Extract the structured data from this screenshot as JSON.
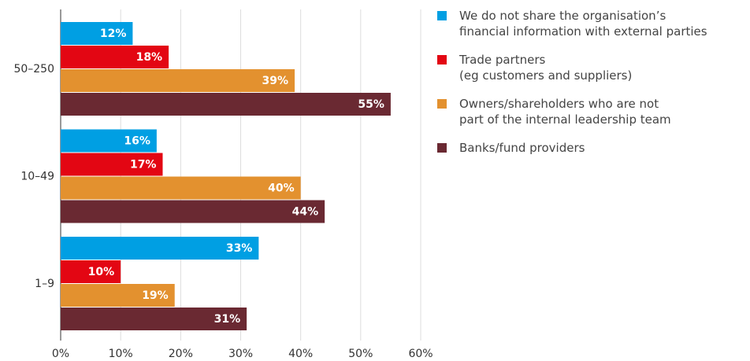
{
  "chart_data": {
    "type": "bar",
    "orientation": "horizontal",
    "categories": [
      "50–250",
      "10–49",
      "1–9"
    ],
    "series": [
      {
        "name": "We do not share the organisation’s\nfinancial information with external parties",
        "color": "#009fe3",
        "values": [
          12,
          16,
          33
        ],
        "value_labels": [
          "12%",
          "16%",
          "33%"
        ]
      },
      {
        "name": "Trade partners\n(eg customers and suppliers)",
        "color": "#e30613",
        "values": [
          18,
          17,
          10
        ],
        "value_labels": [
          "18%",
          "17%",
          "10%"
        ]
      },
      {
        "name": "Owners/shareholders who are not\npart of the internal leadership team",
        "color": "#e3912f",
        "values": [
          39,
          40,
          19
        ],
        "value_labels": [
          "39%",
          "40%",
          "19%"
        ]
      },
      {
        "name": "Banks/fund providers",
        "color": "#6a2932",
        "values": [
          55,
          44,
          31
        ],
        "value_labels": [
          "55%",
          "44%",
          "31%"
        ]
      }
    ],
    "xlim": [
      0,
      60
    ],
    "xticks": [
      {
        "value": 0,
        "label": "0%"
      },
      {
        "value": 10,
        "label": "10%"
      },
      {
        "value": 20,
        "label": "20%"
      },
      {
        "value": 30,
        "label": "30%"
      },
      {
        "value": 40,
        "label": "40%"
      },
      {
        "value": 50,
        "label": "50%"
      },
      {
        "value": 60,
        "label": "60%"
      }
    ],
    "grid": true,
    "legend": "top-right"
  }
}
